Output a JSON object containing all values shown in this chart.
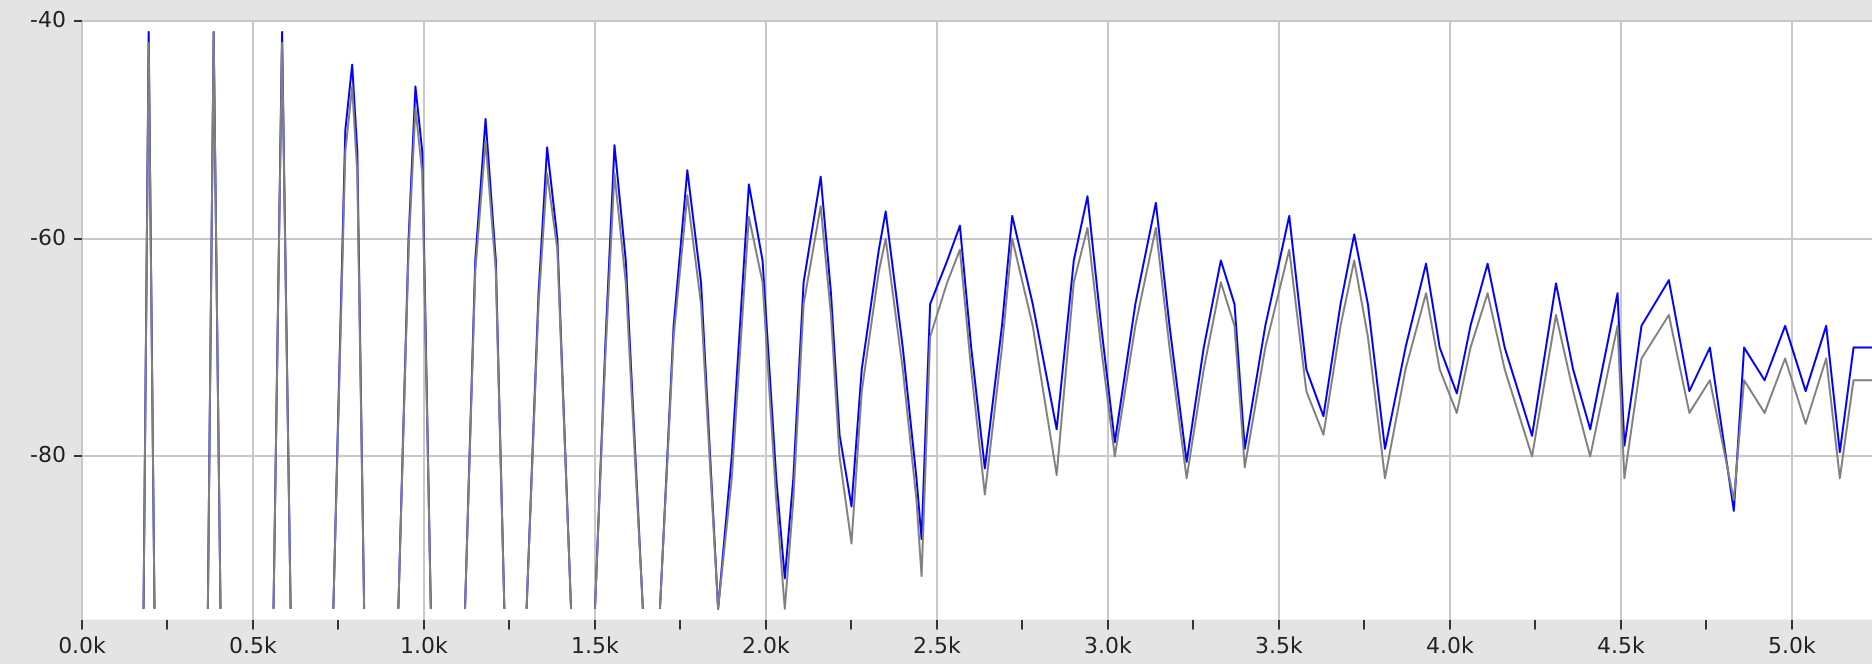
{
  "chart_data": {
    "type": "line",
    "x": [
      180,
      195,
      212,
      290,
      368,
      385,
      405,
      480,
      560,
      585,
      610,
      680,
      735,
      770,
      790,
      805,
      825,
      870,
      925,
      955,
      975,
      995,
      1020,
      1070,
      1120,
      1150,
      1180,
      1210,
      1235,
      1270,
      1300,
      1335,
      1360,
      1390,
      1430,
      1470,
      1500,
      1530,
      1557,
      1590,
      1640,
      1665,
      1690,
      1730,
      1770,
      1810,
      1860,
      1900,
      1950,
      1990,
      2030,
      2055,
      2080,
      2110,
      2160,
      2190,
      2215,
      2250,
      2280,
      2330,
      2350,
      2400,
      2440,
      2455,
      2480,
      2530,
      2567,
      2600,
      2640,
      2690,
      2720,
      2780,
      2850,
      2900,
      2940,
      2980,
      3020,
      3080,
      3140,
      3180,
      3230,
      3280,
      3330,
      3370,
      3400,
      3460,
      3530,
      3580,
      3630,
      3680,
      3720,
      3760,
      3810,
      3870,
      3930,
      3970,
      4020,
      4060,
      4110,
      4160,
      4240,
      4310,
      4360,
      4410,
      4490,
      4510,
      4560,
      4640,
      4700,
      4760,
      4830,
      4860,
      4920,
      4980,
      5040,
      5100,
      5140,
      5180,
      5234
    ],
    "series": [
      {
        "color": "#808080",
        "values": [
          -94,
          -42,
          -94,
          null,
          -94,
          -41,
          -94,
          null,
          -94,
          -42,
          -94,
          null,
          -94,
          -52,
          -46,
          -54,
          -94,
          null,
          -94,
          -61,
          -48,
          -54,
          -94,
          null,
          -94,
          -63,
          -51,
          -63,
          -94,
          null,
          -94,
          -66,
          -54,
          -61,
          -94,
          null,
          -94,
          -71,
          -54,
          -64,
          -94,
          null,
          -94,
          -69,
          -56,
          -66,
          -94,
          -82,
          -58,
          -64,
          -84,
          -94,
          -84,
          -66,
          -57,
          -67,
          -80,
          -88,
          -74,
          -63,
          -60,
          -72,
          -84,
          -91,
          -69,
          -64,
          -61,
          -72,
          -83.5,
          -70,
          -60,
          -68,
          -81.7,
          -64,
          -59,
          -70,
          -80,
          -68,
          -59,
          -70,
          -82,
          -72,
          -64,
          -68,
          -81,
          -70,
          -61,
          -74,
          -78,
          -68,
          -62,
          -69,
          -82,
          -72,
          -65,
          -72,
          -76,
          -70,
          -65,
          -72,
          -80,
          -67,
          -74,
          -80,
          -68,
          -82,
          -71,
          -67,
          -76,
          -73,
          -84,
          -73,
          -76,
          -71,
          -77,
          -71,
          -82,
          -73,
          -73
        ]
      },
      {
        "color": "#0000ff",
        "values": [
          -94,
          -41,
          -94,
          null,
          -94,
          -41,
          -94,
          null,
          -94,
          -41,
          -94,
          null,
          -94,
          -50,
          -44,
          -52,
          -94,
          null,
          -94,
          -60,
          -46,
          -52,
          -94,
          null,
          -94,
          -62,
          -49,
          -62,
          -94,
          null,
          -94,
          -65,
          -51.6,
          -60,
          -94,
          null,
          -94,
          -70,
          -51.4,
          -62,
          -94,
          null,
          -94,
          -68,
          -53.7,
          -64,
          -94,
          -80,
          -55,
          -62,
          -82,
          -91.2,
          -82,
          -64,
          -54.3,
          -65,
          -78,
          -84.6,
          -72,
          -61,
          -57.5,
          -70,
          -82,
          -87.6,
          -66,
          -62,
          -58.8,
          -70,
          -81.1,
          -68,
          -57.9,
          -66,
          -77.5,
          -62,
          -56.1,
          -68,
          -78.7,
          -66,
          -56.7,
          -68,
          -80.5,
          -70,
          -62,
          -66,
          -79.3,
          -68,
          -57.9,
          -72,
          -76.3,
          -66,
          -59.6,
          -66,
          -79.3,
          -70,
          -62.3,
          -70,
          -74.2,
          -68,
          -62.3,
          -70,
          -78.1,
          -64.1,
          -72,
          -77.5,
          -65,
          -79,
          -68,
          -63.8,
          -74,
          -70,
          -85,
          -70,
          -73,
          -68,
          -74,
          -68,
          -79.6,
          -70,
          -70
        ]
      }
    ],
    "xlim": [
      0,
      5234
    ],
    "xticks": [
      {
        "value": 0,
        "label": "0.0k"
      },
      {
        "value": 250,
        "label": null
      },
      {
        "value": 500,
        "label": "0.5k"
      },
      {
        "value": 750,
        "label": null
      },
      {
        "value": 1000,
        "label": "1.0k"
      },
      {
        "value": 1250,
        "label": null
      },
      {
        "value": 1500,
        "label": "1.5k"
      },
      {
        "value": 1750,
        "label": null
      },
      {
        "value": 2000,
        "label": "2.0k"
      },
      {
        "value": 2250,
        "label": null
      },
      {
        "value": 2500,
        "label": "2.5k"
      },
      {
        "value": 2750,
        "label": null
      },
      {
        "value": 3000,
        "label": "3.0k"
      },
      {
        "value": 3250,
        "label": null
      },
      {
        "value": 3500,
        "label": "3.5k"
      },
      {
        "value": 3750,
        "label": null
      },
      {
        "value": 4000,
        "label": "4.0k"
      },
      {
        "value": 4250,
        "label": null
      },
      {
        "value": 4500,
        "label": "4.5k"
      },
      {
        "value": 4750,
        "label": null
      },
      {
        "value": 5000,
        "label": "5.0k"
      }
    ],
    "ylim": [
      -95,
      -40
    ],
    "yticks": [
      -40,
      -60,
      -80
    ],
    "grid": true,
    "legend": false,
    "marker": "none",
    "line_style": "solid"
  }
}
